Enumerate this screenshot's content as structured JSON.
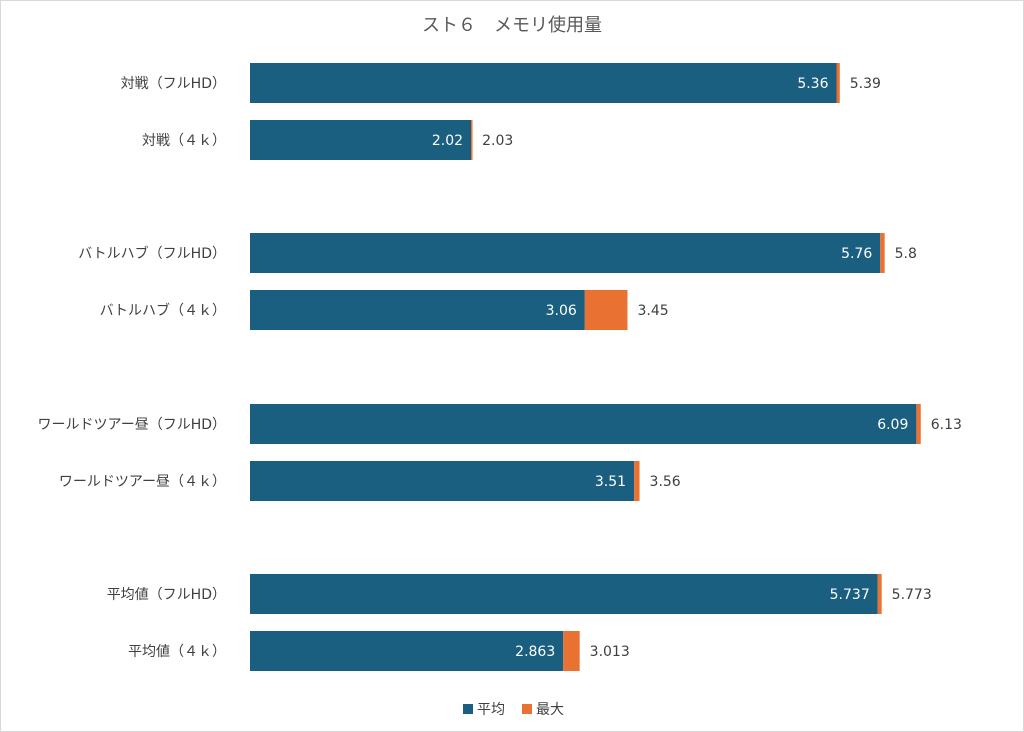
{
  "chart_data": {
    "type": "bar",
    "orientation": "horizontal",
    "title": "スト６　メモリ使用量",
    "xlim": [
      0,
      6.9
    ],
    "grid": false,
    "legend_position": "bottom",
    "stacked": true,
    "groups": [
      {
        "items": [
          {
            "category": "対戦（フルHD）",
            "avg": 5.36,
            "max": 5.39,
            "avg_label": "5.36",
            "max_label": "5.39"
          },
          {
            "category": "対戦（４ｋ）",
            "avg": 2.02,
            "max": 2.03,
            "avg_label": "2.02",
            "max_label": "2.03"
          }
        ]
      },
      {
        "items": [
          {
            "category": "バトルハブ（フルHD）",
            "avg": 5.76,
            "max": 5.8,
            "avg_label": "5.76",
            "max_label": "5.8"
          },
          {
            "category": "バトルハブ（４ｋ）",
            "avg": 3.06,
            "max": 3.45,
            "avg_label": "3.06",
            "max_label": "3.45"
          }
        ]
      },
      {
        "items": [
          {
            "category": "ワールドツアー昼（フルHD）",
            "avg": 6.09,
            "max": 6.13,
            "avg_label": "6.09",
            "max_label": "6.13"
          },
          {
            "category": "ワールドツアー昼（４ｋ）",
            "avg": 3.51,
            "max": 3.56,
            "avg_label": "3.51",
            "max_label": "3.56"
          }
        ]
      },
      {
        "items": [
          {
            "category": "平均値（フルHD）",
            "avg": 5.737,
            "max": 5.773,
            "avg_label": "5.737",
            "max_label": "5.773"
          },
          {
            "category": "平均値（４ｋ）",
            "avg": 2.863,
            "max": 3.013,
            "avg_label": "2.863",
            "max_label": "3.013"
          }
        ]
      }
    ],
    "series": [
      {
        "name": "平均",
        "color": "#1a5f7f"
      },
      {
        "name": "最大",
        "color": "#e97132"
      }
    ]
  }
}
